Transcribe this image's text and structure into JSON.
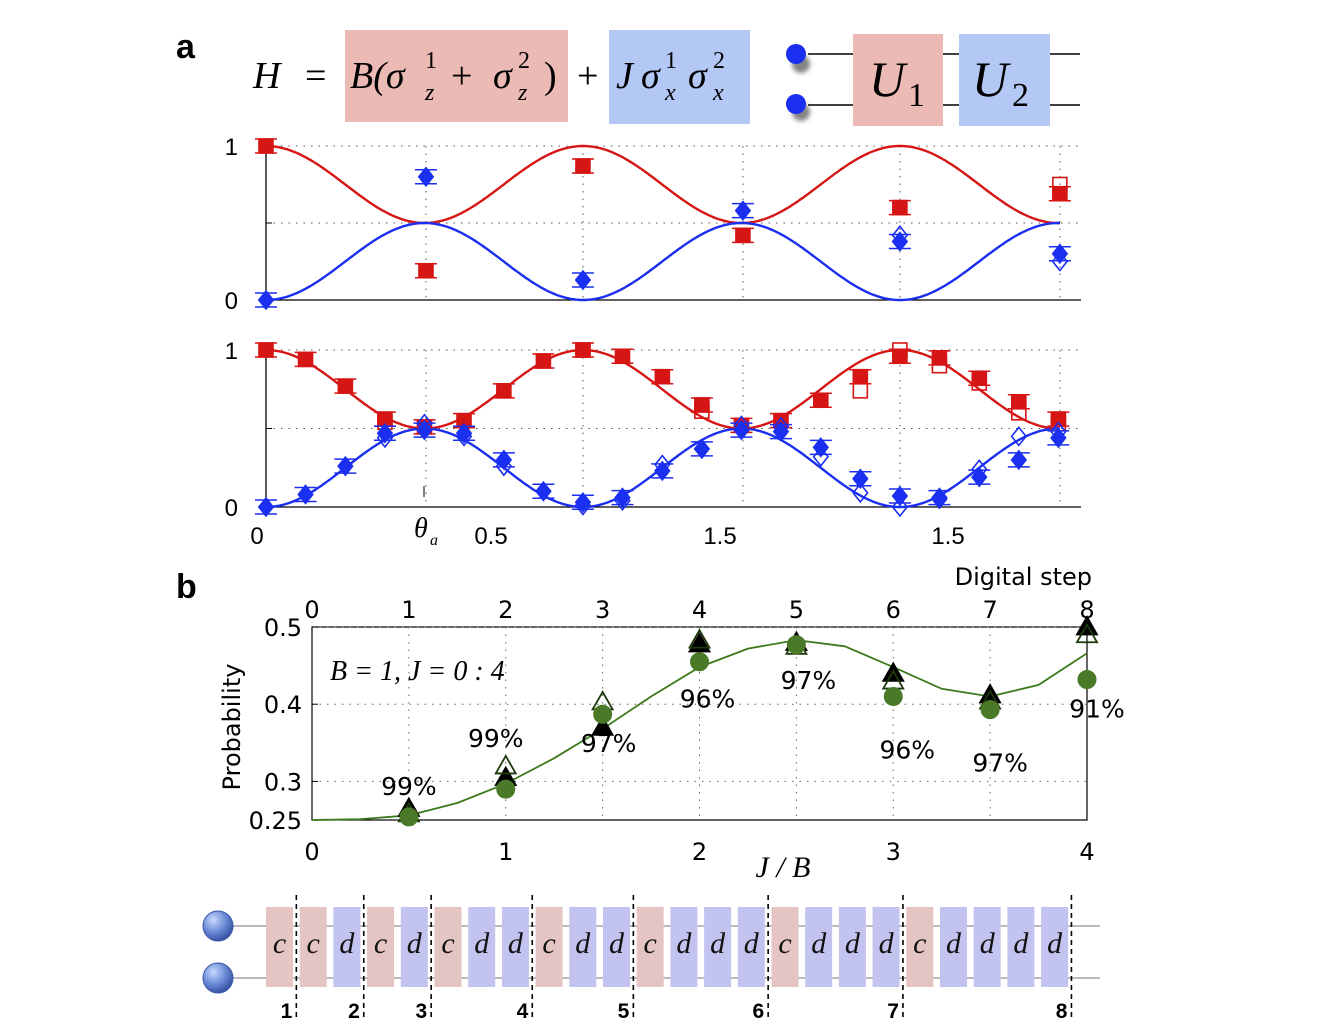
{
  "panel_labels": {
    "a": "a",
    "b": "b"
  },
  "equation": {
    "H": "H",
    "equals": "=",
    "term1": "B(σ",
    "term1_sup1": "1",
    "term1_sub1": "z",
    "plus_inner": "+",
    "sigma2": "σ",
    "term1_sup2": "2",
    "term1_sub2": "z",
    "close": ")",
    "plus": "+",
    "term2_J": "J",
    "term2_s": "σ",
    "term2_sup1": "1",
    "term2_sub1": "x",
    "term2_sup2": "2",
    "term2_sub2": "x",
    "term1_color": "#ecbab4",
    "term2_color": "#b4c8f5"
  },
  "circuit_header": {
    "U1": "U",
    "U1_sub": "1",
    "U2": "U",
    "U2_sub": "2",
    "U1_color": "#ecbab4",
    "U2_color": "#b4c8f5",
    "qubit_color": "#1a2ff0"
  },
  "chart_data": [
    {
      "id": "a-top",
      "type": "scatter",
      "yticks": [
        "0",
        "1"
      ],
      "ylim": [
        0,
        1
      ],
      "xlim": [
        0,
        2.7
      ],
      "grid": true,
      "curves": [
        {
          "color": "#d61515",
          "model": "0.75+0.25*cos(2πx/1.05)"
        },
        {
          "color": "#1a2ff0",
          "model": "0.25-0.25*cos(2πx/1.05)"
        }
      ],
      "series": [
        {
          "color": "#d61515",
          "marker": "square-filled",
          "x": [
            0,
            0.53,
            1.05,
            1.58,
            2.1,
            2.63
          ],
          "y": [
            1.0,
            0.19,
            0.87,
            0.42,
            0.6,
            0.69
          ]
        },
        {
          "color": "#d61515",
          "marker": "square-open",
          "x": [
            2.63
          ],
          "y": [
            0.75
          ]
        },
        {
          "color": "#1a2ff0",
          "marker": "diamond-filled",
          "x": [
            0,
            0.53,
            1.05,
            1.58,
            2.1,
            2.63
          ],
          "y": [
            0.0,
            0.8,
            0.13,
            0.58,
            0.38,
            0.3
          ]
        },
        {
          "color": "#1a2ff0",
          "marker": "diamond-open",
          "x": [
            2.1,
            2.63
          ],
          "y": [
            0.42,
            0.25
          ]
        }
      ]
    },
    {
      "id": "a-bottom",
      "type": "scatter",
      "xticks": [
        {
          "label": "0"
        },
        {
          "label": "θ",
          "sub": "a"
        },
        {
          "label": "0.5"
        },
        {
          "label": "1.5"
        },
        {
          "label": "1.5"
        }
      ],
      "yticks": [
        "0",
        "1"
      ],
      "ylim": [
        0,
        1
      ],
      "xlim": [
        0,
        2.7
      ],
      "grid": true,
      "curves": [
        {
          "color": "#d61515",
          "model": "0.75+0.25*cos(2πx/1.05)"
        },
        {
          "color": "#d61515",
          "model": "0.25-0.25*cos(2πx/1.05)"
        }
      ],
      "series": [
        {
          "color": "#d61515",
          "marker": "square-filled",
          "x": [
            0,
            0.131,
            0.263,
            0.394,
            0.525,
            0.656,
            0.788,
            0.919,
            1.05,
            1.181,
            1.313,
            1.444,
            1.575,
            1.706,
            1.838,
            1.969,
            2.1,
            2.231,
            2.363,
            2.494,
            2.625
          ],
          "y": [
            1.0,
            0.94,
            0.77,
            0.56,
            0.51,
            0.55,
            0.74,
            0.93,
            1.0,
            0.96,
            0.83,
            0.65,
            0.52,
            0.55,
            0.68,
            0.83,
            0.96,
            0.95,
            0.82,
            0.67,
            0.56
          ]
        },
        {
          "color": "#d61515",
          "marker": "square-open",
          "x": [
            0.394,
            1.05,
            1.444,
            1.969,
            2.1,
            2.231,
            2.363,
            2.494,
            2.625
          ],
          "y": [
            0.54,
            1.0,
            0.61,
            0.74,
            1.0,
            0.9,
            0.79,
            0.6,
            0.53
          ]
        },
        {
          "color": "#1a2ff0",
          "marker": "diamond-filled",
          "x": [
            0,
            0.131,
            0.263,
            0.394,
            0.525,
            0.656,
            0.788,
            0.919,
            1.05,
            1.181,
            1.313,
            1.444,
            1.575,
            1.706,
            1.838,
            1.969,
            2.1,
            2.231,
            2.363,
            2.494,
            2.625
          ],
          "y": [
            0.0,
            0.08,
            0.26,
            0.47,
            0.49,
            0.47,
            0.3,
            0.1,
            0.03,
            0.06,
            0.23,
            0.37,
            0.49,
            0.48,
            0.38,
            0.18,
            0.07,
            0.06,
            0.19,
            0.3,
            0.44
          ]
        },
        {
          "color": "#1a2ff0",
          "marker": "diamond-open",
          "x": [
            0.394,
            0.525,
            0.656,
            0.788,
            0.919,
            1.05,
            1.181,
            1.313,
            1.575,
            1.706,
            1.838,
            1.969,
            2.1,
            2.231,
            2.363,
            2.494,
            2.625
          ],
          "y": [
            0.44,
            0.53,
            0.45,
            0.26,
            0.1,
            0.01,
            0.04,
            0.27,
            0.52,
            0.51,
            0.32,
            0.09,
            0.0,
            0.05,
            0.24,
            0.45,
            0.48
          ]
        }
      ]
    },
    {
      "id": "b",
      "type": "scatter",
      "top_axis_label": "Digital step",
      "top_ticks": [
        "0",
        "1",
        "2",
        "3",
        "4",
        "5",
        "6",
        "7",
        "8"
      ],
      "ylabel": "Probability",
      "xlabel_math": "J / B",
      "xticks": [
        "0",
        "1",
        "2",
        "3",
        "4"
      ],
      "yticks": [
        {
          "value": 0.25,
          "label": "0.25"
        },
        {
          "value": 0.3,
          "label": "0.3"
        },
        {
          "value": 0.4,
          "label": "0.4"
        },
        {
          "value": 0.5,
          "label": "0.5"
        }
      ],
      "xlim": [
        0,
        4
      ],
      "ylim": [
        0.25,
        0.5
      ],
      "grid": true,
      "annotation": "B = 1, J = 0 : 4",
      "curve": {
        "color": "#3c7a1c",
        "x": [
          0,
          0.25,
          0.5,
          0.75,
          1.0,
          1.25,
          1.5,
          1.75,
          2.0,
          2.25,
          2.5,
          2.75,
          3.0,
          3.25,
          3.5,
          3.75,
          4.0
        ],
        "y": [
          0.25,
          0.251,
          0.256,
          0.272,
          0.297,
          0.33,
          0.368,
          0.41,
          0.448,
          0.472,
          0.483,
          0.475,
          0.448,
          0.42,
          0.41,
          0.425,
          0.466
        ]
      },
      "series": [
        {
          "color": "#000000",
          "marker": "triangle-filled",
          "x": [
            0.5,
            1.0,
            1.5,
            2.0,
            2.5,
            3.0,
            3.5,
            4.0
          ],
          "y": [
            0.265,
            0.305,
            0.37,
            0.478,
            0.48,
            0.44,
            0.412,
            0.5
          ]
        },
        {
          "color": "#1e3a0c",
          "marker": "triangle-open",
          "x": [
            0.5,
            1.0,
            1.5,
            2.0,
            2.5,
            3.0,
            3.5,
            4.0
          ],
          "y": [
            0.258,
            0.32,
            0.403,
            0.483,
            0.475,
            0.43,
            0.404,
            0.49
          ]
        },
        {
          "color": "#4a7a28",
          "marker": "circle-filled",
          "x": [
            0.5,
            1.0,
            1.5,
            2.0,
            2.5,
            3.0,
            3.5,
            4.0
          ],
          "y": [
            0.254,
            0.29,
            0.387,
            0.455,
            0.477,
            0.41,
            0.393,
            0.432
          ]
        }
      ],
      "fidelities": [
        {
          "x": 0.5,
          "label": "99%"
        },
        {
          "x": 1.0,
          "label": "99%"
        },
        {
          "x": 1.5,
          "label": "97%"
        },
        {
          "x": 2.0,
          "label": "96%"
        },
        {
          "x": 2.5,
          "label": "97%"
        },
        {
          "x": 3.0,
          "label": "96%"
        },
        {
          "x": 3.5,
          "label": "97%"
        },
        {
          "x": 4.0,
          "label": "91%"
        }
      ]
    }
  ],
  "gate_sequence": {
    "c_color": "#e5c4c4",
    "d_color": "#c3c3ef",
    "gates": [
      "c",
      "c",
      "d",
      "c",
      "d",
      "c",
      "d",
      "d",
      "c",
      "d",
      "d",
      "c",
      "d",
      "d",
      "d",
      "c",
      "d",
      "d",
      "d",
      "c",
      "d",
      "d",
      "d",
      "d"
    ],
    "step_labels": [
      "1",
      "2",
      "3",
      "4",
      "5",
      "6",
      "7",
      "8"
    ],
    "qubit_color": "#6f8fd8"
  }
}
